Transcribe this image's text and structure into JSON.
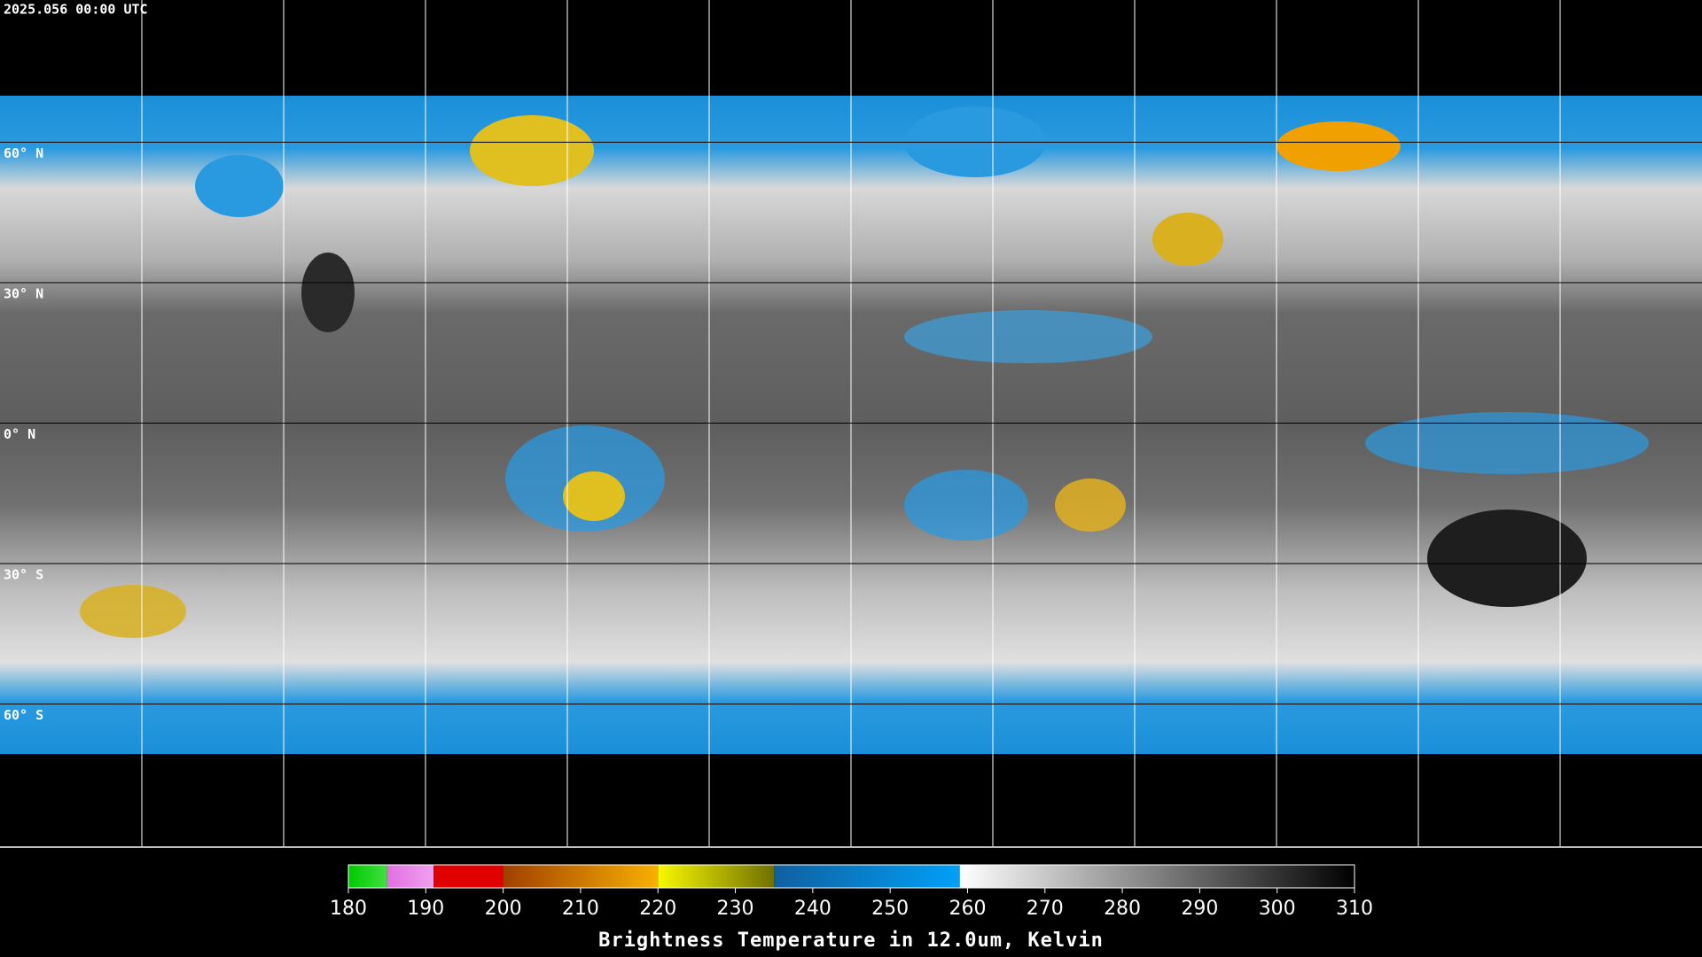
{
  "map": {
    "timestamp": "2025.056 00:00 UTC",
    "lat_range": [
      -90,
      90
    ],
    "lon_range": [
      -180,
      180
    ],
    "lat_ticks": [
      {
        "value": 60,
        "label": "60° N"
      },
      {
        "value": 30,
        "label": "30° N"
      },
      {
        "value": 0,
        "label": "0° N"
      },
      {
        "value": -30,
        "label": "30° S"
      },
      {
        "value": -60,
        "label": "60° S"
      }
    ],
    "lon_ticks": [
      -150,
      -120,
      -90,
      -60,
      -30,
      0,
      30,
      60,
      90,
      120,
      150
    ]
  },
  "colorbar": {
    "label": "Brightness Temperature in 12.0um, Kelvin",
    "range": [
      180,
      310
    ],
    "ticks": [
      180,
      190,
      200,
      210,
      220,
      230,
      240,
      250,
      260,
      270,
      280,
      290,
      300,
      310
    ],
    "segments": [
      {
        "from": 180,
        "to": 185,
        "colors": [
          "#00c800",
          "#40e040"
        ]
      },
      {
        "from": 185,
        "to": 191,
        "colors": [
          "#e070e0",
          "#f0a0f0"
        ]
      },
      {
        "from": 191,
        "to": 200,
        "colors": [
          "#e00000",
          "#e00000"
        ]
      },
      {
        "from": 200,
        "to": 220,
        "colors": [
          "#a04000",
          "#f8b000"
        ]
      },
      {
        "from": 220,
        "to": 235,
        "colors": [
          "#f8f800",
          "#707000"
        ]
      },
      {
        "from": 235,
        "to": 259,
        "colors": [
          "#1060a0",
          "#00a0f8"
        ]
      },
      {
        "from": 259,
        "to": 310,
        "colors": [
          "#ffffff",
          "#000000"
        ]
      }
    ]
  }
}
